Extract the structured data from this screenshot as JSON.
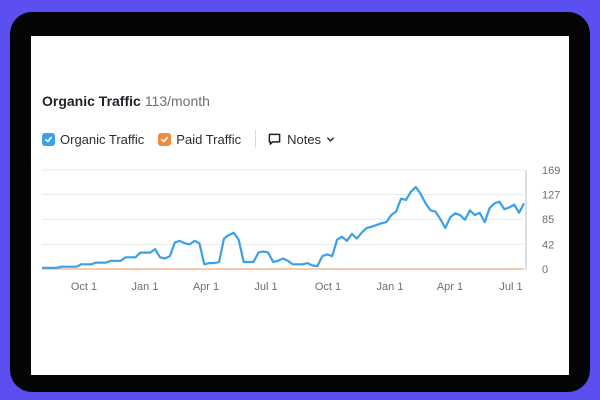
{
  "header": {
    "title": "Organic Traffic",
    "value": "113/month"
  },
  "legend": {
    "items": [
      {
        "label": "Organic Traffic",
        "color": "#3aa0e8",
        "checked": true,
        "icon": "checkbox-checked-icon"
      },
      {
        "label": "Paid Traffic",
        "color": "#f28a3c",
        "checked": true,
        "icon": "checkbox-checked-icon"
      }
    ],
    "notes_label": "Notes",
    "notes_icon": "comment-icon",
    "notes_chevron": "chevron-down-icon"
  },
  "colors": {
    "frame_bg": "#5b4ff0",
    "bezel": "#050505",
    "organic": "#3aa0e8",
    "paid": "#f5b995",
    "grid": "#e8e9ec"
  },
  "chart_data": {
    "type": "line",
    "title": "Organic Traffic 113/month",
    "xlabel": "",
    "ylabel": "",
    "ylim": [
      0,
      169
    ],
    "y_ticks": [
      0,
      42,
      85,
      127,
      169
    ],
    "x_ticks": [
      "Oct 1",
      "Jan 1",
      "Apr 1",
      "Jul 1",
      "Oct 1",
      "Jan 1",
      "Apr 1",
      "Jul 1"
    ],
    "grid": true,
    "legend_position": "top-left",
    "series": [
      {
        "name": "Organic Traffic",
        "x_index": [
          0,
          4,
          8,
          10,
          12,
          14,
          16,
          18,
          20,
          22,
          24,
          26,
          28,
          30,
          32,
          34,
          36,
          38,
          40,
          42,
          44,
          46,
          48,
          50,
          52,
          54,
          56,
          58,
          60,
          62,
          64,
          66,
          68,
          70,
          72,
          74,
          76,
          78,
          80,
          82,
          84,
          86,
          88,
          90,
          92,
          94,
          96,
          98,
          100,
          102,
          104,
          106,
          108,
          110,
          112,
          114,
          116,
          118,
          120,
          122,
          124,
          126,
          128,
          130,
          132,
          134,
          136,
          138,
          140,
          142,
          144,
          146,
          148,
          150,
          152,
          154,
          156,
          158,
          160,
          162,
          164,
          166,
          168,
          170,
          172,
          174,
          176,
          178,
          180,
          182,
          184,
          186,
          188,
          190,
          192,
          194,
          196,
          198,
          200
        ],
        "values": [
          2,
          2,
          2,
          2,
          4,
          4,
          4,
          4,
          8,
          8,
          8,
          11,
          11,
          11,
          14,
          14,
          14,
          20,
          20,
          20,
          28,
          28,
          28,
          34,
          20,
          18,
          22,
          45,
          48,
          44,
          42,
          48,
          44,
          8,
          10,
          10,
          12,
          52,
          58,
          62,
          50,
          12,
          12,
          12,
          28,
          30,
          28,
          12,
          14,
          18,
          14,
          8,
          8,
          8,
          10,
          6,
          5,
          22,
          25,
          22,
          50,
          55,
          48,
          60,
          52,
          62,
          70,
          72,
          75,
          78,
          80,
          92,
          98,
          120,
          118,
          132,
          140,
          128,
          112,
          100,
          98,
          85,
          70,
          88,
          95,
          92,
          84,
          100,
          92,
          96,
          80,
          104,
          112,
          115,
          102,
          105,
          110,
          96,
          112
        ]
      },
      {
        "name": "Paid Traffic",
        "values_constant": 0
      }
    ]
  }
}
